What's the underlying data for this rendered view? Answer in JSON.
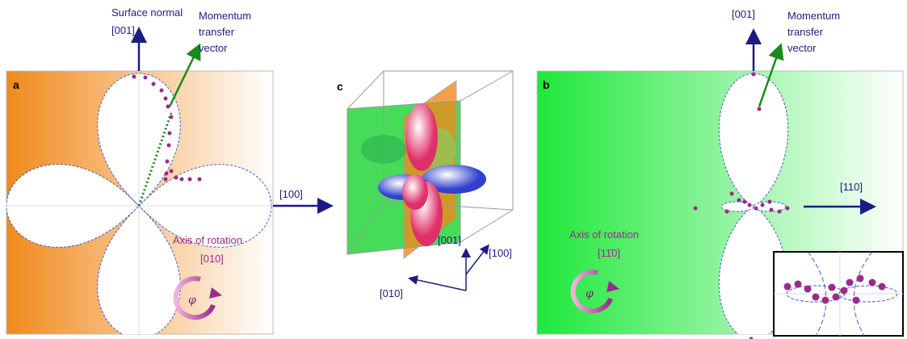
{
  "panel_a": {
    "label": "a",
    "normal_label": "Surface normal",
    "normal_axis": "[001]",
    "momentum_lines": [
      "Momentum",
      "transfer",
      "vector"
    ],
    "horizontal_axis": "[100]",
    "rotation_label": "Axis of rotation",
    "rotation_axis": "[010]",
    "angle": "φ"
  },
  "panel_c": {
    "label": "c",
    "axes": [
      "[001]",
      "[100]",
      "[010]"
    ]
  },
  "panel_b": {
    "label": "b",
    "normal_axis": "[001]",
    "momentum_lines": [
      "Momentum",
      "transfer",
      "vector"
    ],
    "horizontal_axis": "[110]",
    "rotation_label": "Axis of rotation",
    "rotation_axis": "[11̄0]",
    "angle": "φ"
  }
}
